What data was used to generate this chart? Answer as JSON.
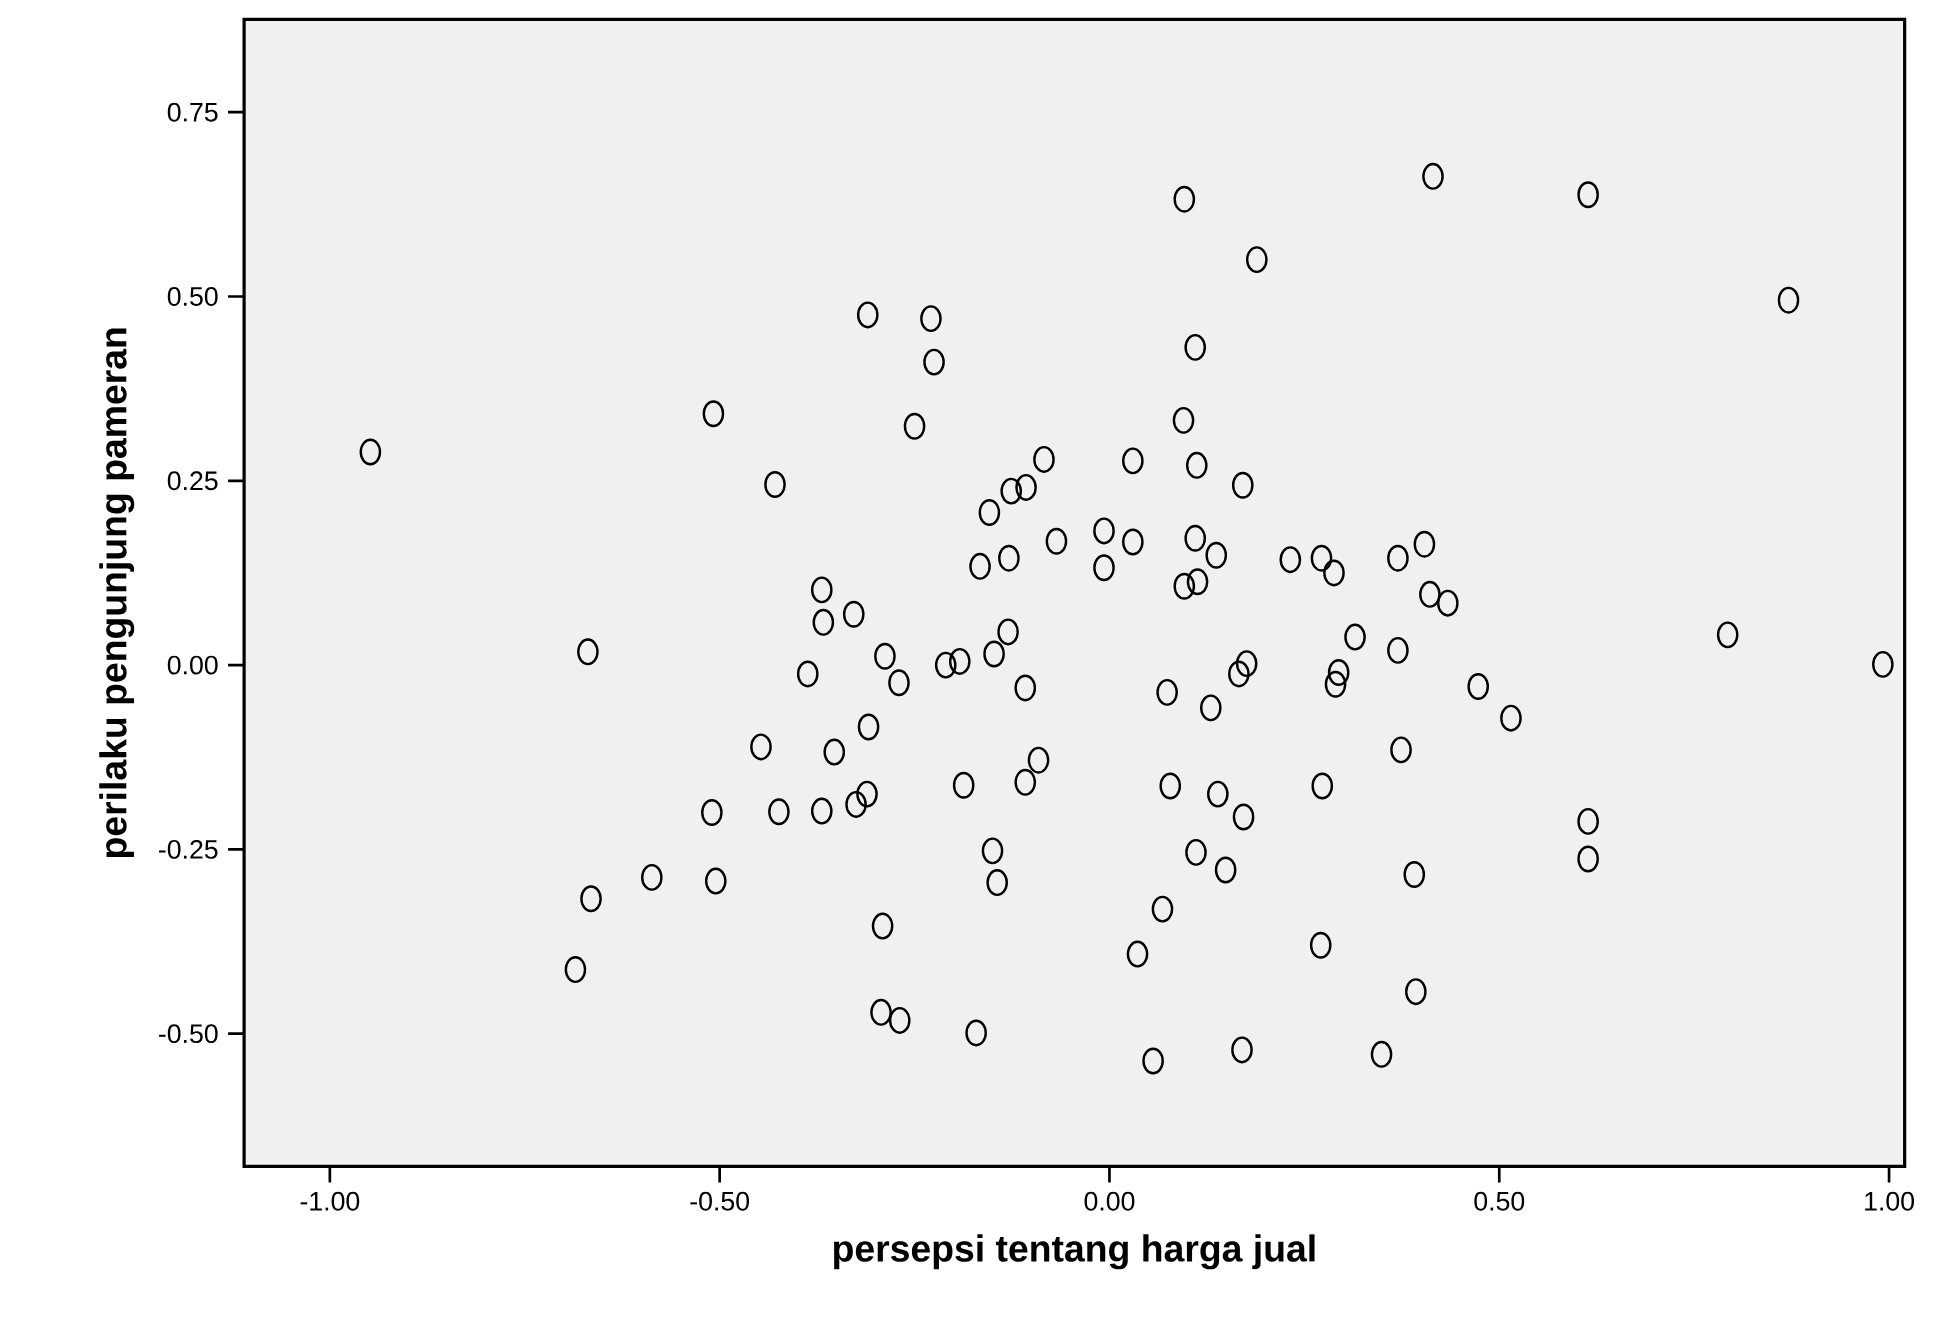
{
  "chart_data": {
    "type": "scatter",
    "xlabel": "persepsi tentang harga jual",
    "ylabel": "perilaku pengunjung pameran",
    "x": [
      -0.948,
      -0.508,
      -0.31,
      -0.229,
      -0.225,
      -0.25,
      -0.429,
      -0.084,
      -0.107,
      -0.126,
      -0.154,
      -0.068,
      -0.129,
      -0.166,
      -0.369,
      -0.328,
      -0.367,
      -0.13,
      -0.288,
      -0.148,
      -0.192,
      -0.21,
      -0.387,
      -0.27,
      -0.108,
      -0.669,
      -0.309,
      -0.447,
      -0.353,
      -0.091,
      -0.108,
      -0.187,
      -0.311,
      -0.325,
      -0.51,
      -0.424,
      -0.369,
      -0.15,
      -0.144,
      -0.587,
      -0.505,
      -0.665,
      -0.291,
      -0.685,
      -0.293,
      -0.269,
      -0.171,
      0.096,
      0.415,
      0.614,
      0.189,
      0.871,
      0.11,
      0.095,
      0.03,
      0.112,
      0.171,
      -0.007,
      0.03,
      0.11,
      0.137,
      -0.007,
      0.232,
      0.272,
      0.288,
      0.37,
      0.404,
      0.096,
      0.113,
      0.411,
      0.434,
      0.315,
      0.37,
      0.793,
      0.992,
      0.176,
      0.166,
      0.294,
      0.29,
      0.473,
      0.074,
      0.13,
      0.515,
      0.374,
      0.078,
      0.139,
      0.273,
      0.172,
      0.614,
      0.614,
      0.111,
      0.149,
      0.391,
      0.068,
      0.036,
      0.271,
      0.393,
      0.056,
      0.17,
      0.349
    ],
    "values": [
      0.289,
      0.341,
      0.475,
      0.47,
      0.411,
      0.324,
      0.245,
      0.279,
      0.241,
      0.236,
      0.207,
      0.168,
      0.145,
      0.134,
      0.102,
      0.069,
      0.058,
      0.045,
      0.012,
      0.015,
      0.005,
      0.0,
      -0.012,
      -0.024,
      -0.031,
      0.018,
      -0.084,
      -0.111,
      -0.118,
      -0.129,
      -0.159,
      -0.163,
      -0.175,
      -0.189,
      -0.2,
      -0.199,
      -0.198,
      -0.252,
      -0.295,
      -0.288,
      -0.293,
      -0.317,
      -0.354,
      -0.413,
      -0.471,
      -0.482,
      -0.499,
      0.632,
      0.663,
      0.638,
      0.55,
      0.495,
      0.431,
      0.332,
      0.277,
      0.271,
      0.244,
      0.182,
      0.167,
      0.172,
      0.149,
      0.132,
      0.143,
      0.145,
      0.125,
      0.145,
      0.164,
      0.107,
      0.113,
      0.096,
      0.084,
      0.038,
      0.02,
      0.041,
      0.001,
      0.002,
      -0.012,
      -0.01,
      -0.026,
      -0.029,
      -0.037,
      -0.058,
      -0.072,
      -0.115,
      -0.164,
      -0.175,
      -0.164,
      -0.206,
      -0.212,
      -0.263,
      -0.254,
      -0.278,
      -0.284,
      -0.331,
      -0.392,
      -0.38,
      -0.443,
      -0.537,
      -0.522,
      -0.528
    ],
    "color": "#000000",
    "marker": "circle",
    "xlim": [
      -1.11,
      1.02
    ],
    "ylim": [
      -0.68,
      0.876
    ],
    "xticks": [
      {
        "value": -1,
        "label": "-1.00"
      },
      {
        "value": -0.5,
        "label": "-0.50"
      },
      {
        "value": 0,
        "label": "0.00"
      },
      {
        "value": 0.5,
        "label": "0.50"
      },
      {
        "value": 1,
        "label": "1.00"
      }
    ],
    "yticks": [
      {
        "value": -0.5,
        "label": "-0.50"
      },
      {
        "value": -0.25,
        "label": "-0.25"
      },
      {
        "value": 0,
        "label": "0.00"
      },
      {
        "value": 0.25,
        "label": "0.25"
      },
      {
        "value": 0.5,
        "label": "0.50"
      },
      {
        "value": 0.75,
        "label": "0.75"
      }
    ]
  }
}
